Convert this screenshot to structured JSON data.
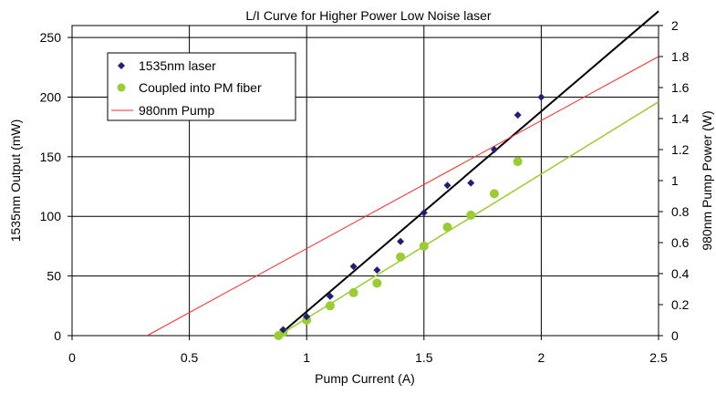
{
  "chart_data": {
    "type": "scatter",
    "title": "L/I Curve for Higher Power Low Noise laser",
    "xlabel": "Pump Current (A)",
    "ylabel": "1535nm Output (mW)",
    "y2label": "980nm Pump Power (W)",
    "xlim": [
      0,
      2.5
    ],
    "ylim": [
      0,
      260
    ],
    "y2lim": [
      0,
      2
    ],
    "x_ticks": [
      "0",
      "0.5",
      "1",
      "1.5",
      "2",
      "2.5"
    ],
    "y_ticks": [
      "0",
      "50",
      "100",
      "150",
      "200",
      "250"
    ],
    "y2_ticks": [
      "0",
      "0.2",
      "0.4",
      "0.6",
      "0.8",
      "1",
      "1.2",
      "1.4",
      "1.6",
      "1.8",
      "2"
    ],
    "grid": true,
    "legend_position": "top-left",
    "series": [
      {
        "name": "1535nm laser",
        "marker": "diamond",
        "color": "#1f1f7a",
        "axis": "left",
        "x": [
          0.9,
          1.0,
          1.1,
          1.2,
          1.3,
          1.4,
          1.5,
          1.6,
          1.7,
          1.8,
          1.9,
          2.0
        ],
        "y": [
          5,
          16,
          33,
          58,
          55,
          79,
          103,
          126,
          128,
          156,
          185,
          200
        ]
      },
      {
        "name": "Coupled into PM fiber",
        "marker": "circle",
        "color": "#9acd32",
        "axis": "left",
        "x": [
          0.88,
          0.9,
          1.0,
          1.1,
          1.2,
          1.3,
          1.4,
          1.5,
          1.6,
          1.7,
          1.8,
          1.9
        ],
        "y": [
          0,
          3,
          13,
          25,
          36,
          44,
          66,
          75,
          91,
          101,
          119,
          146
        ]
      },
      {
        "name": "980nm Pump",
        "marker": "line",
        "color": "#ff2a2a",
        "axis": "right",
        "x": [
          0.32,
          2.5
        ],
        "y": [
          0,
          1.8
        ]
      }
    ],
    "trendlines": [
      {
        "series": "1535nm laser",
        "color": "#000000",
        "x": [
          0.88,
          2.5
        ],
        "y": [
          0,
          272
        ]
      },
      {
        "series": "Coupled into PM fiber",
        "color": "#9acd32",
        "x": [
          0.88,
          2.5
        ],
        "y": [
          0,
          196
        ]
      }
    ]
  }
}
